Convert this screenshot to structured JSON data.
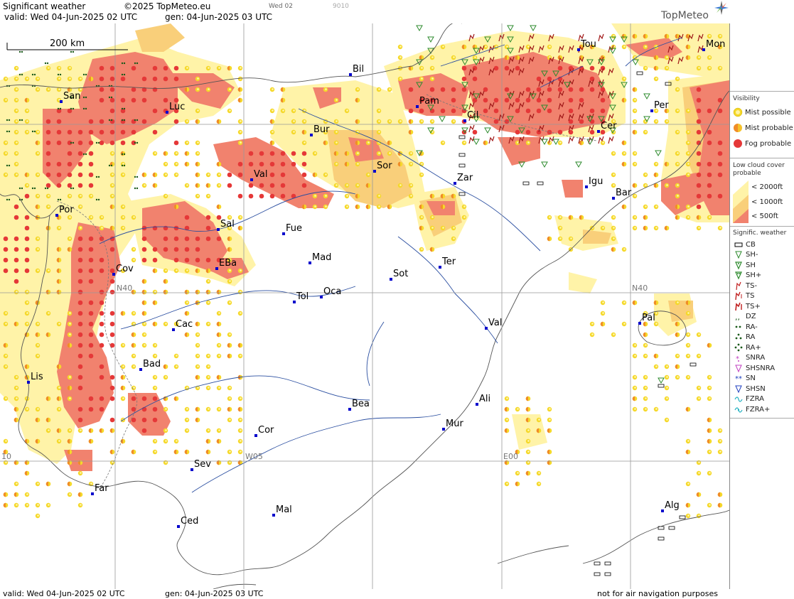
{
  "header": {
    "title": "Significant weather",
    "copyright": "©2025 TopMeteo.eu",
    "run_code": "Wed 02",
    "run_num": "9010",
    "valid": "valid:  Wed  04-Jun-2025  02 UTC",
    "gen": "gen: 04-Jun-2025 03 UTC",
    "brand": "TopMeteo"
  },
  "footer": {
    "valid": "valid:  Wed  04-Jun-2025  02 UTC",
    "gen": "gen: 04-Jun-2025 03 UTC",
    "disclaimer": "not for air navigation purposes"
  },
  "map": {
    "scale_label": "200 km",
    "grid_labels": {
      "n40_left": "N40",
      "n40_right": "N40",
      "w05": "W05",
      "e00": "E00",
      "w10": "10"
    },
    "cities": [
      "San",
      "Luc",
      "Bil",
      "Pam",
      "Tou",
      "Mon",
      "Per",
      "Cil",
      "Cer",
      "Bur",
      "Val",
      "Sor",
      "Zar",
      "Igu",
      "Bar",
      "Por",
      "Sal",
      "Fue",
      "EBa",
      "Mad",
      "Cov",
      "Ter",
      "Sot",
      "Tol",
      "Oca",
      "Pal",
      "Cac",
      "Val",
      "Bad",
      "Lis",
      "Bea",
      "Ali",
      "Mur",
      "Cor",
      "Sev",
      "Far",
      "Mal",
      "Ced",
      "Alg"
    ],
    "colors": {
      "fog": "#e53838",
      "mist_probable": "#f08c28",
      "mist_possible": "#f5d82a",
      "low_cloud_2000": "#fff3a8",
      "low_cloud_1000": "#f9cf7a",
      "low_cloud_500": "#f1826e",
      "land_bg": "#ffffff",
      "city_marker": "#0000cc",
      "rivers": "#2a4ea0",
      "grid": "#999999"
    }
  },
  "legend": {
    "visibility_title": "Visibility",
    "visibility": [
      {
        "label": "Mist possible",
        "icon": "mist-possible-icon"
      },
      {
        "label": "Mist probable",
        "icon": "mist-probable-icon"
      },
      {
        "label": "Fog probable",
        "icon": "fog-probable-icon"
      }
    ],
    "low_cloud_title_1": "Low cloud cover",
    "low_cloud_title_2": "probable",
    "low_cloud": [
      {
        "label": "<  2000ft"
      },
      {
        "label": "<  1000ft"
      },
      {
        "label": "<    500ft"
      }
    ],
    "sigwx_title": "Signific. weather",
    "sigwx": [
      {
        "label": "CB",
        "icon": "cb-icon"
      },
      {
        "label": "SH-",
        "icon": "shower-light-icon"
      },
      {
        "label": "SH",
        "icon": "shower-icon"
      },
      {
        "label": "SH+",
        "icon": "shower-heavy-icon"
      },
      {
        "label": "TS-",
        "icon": "thunderstorm-light-icon"
      },
      {
        "label": "TS",
        "icon": "thunderstorm-icon"
      },
      {
        "label": "TS+",
        "icon": "thunderstorm-heavy-icon"
      },
      {
        "label": "DZ",
        "icon": "drizzle-icon"
      },
      {
        "label": "RA-",
        "icon": "rain-light-icon"
      },
      {
        "label": "RA",
        "icon": "rain-icon"
      },
      {
        "label": "RA+",
        "icon": "rain-heavy-icon"
      },
      {
        "label": "SNRA",
        "icon": "snow-rain-icon"
      },
      {
        "label": "SHSNRA",
        "icon": "snow-rain-shower-icon"
      },
      {
        "label": "SN",
        "icon": "snow-icon"
      },
      {
        "label": "SHSN",
        "icon": "snow-shower-icon"
      },
      {
        "label": "FZRA",
        "icon": "freezing-rain-icon"
      },
      {
        "label": "FZRA+",
        "icon": "freezing-rain-heavy-icon"
      }
    ]
  }
}
